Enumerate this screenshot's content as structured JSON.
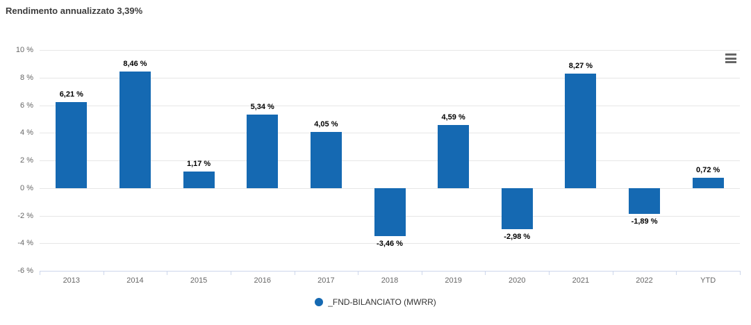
{
  "header": {
    "title": "Rendimento annualizzato 3,39%"
  },
  "chart_data": {
    "type": "bar",
    "title": "Rendimento annualizzato 3,39%",
    "categories": [
      "2013",
      "2014",
      "2015",
      "2016",
      "2017",
      "2018",
      "2019",
      "2020",
      "2021",
      "2022",
      "YTD"
    ],
    "series": [
      {
        "name": "_FND-BILANCIATO (MWRR)",
        "values": [
          6.21,
          8.46,
          1.17,
          5.34,
          4.05,
          -3.46,
          4.59,
          -2.98,
          8.27,
          -1.89,
          0.72
        ],
        "labels": [
          "6,21 %",
          "8,46 %",
          "1,17 %",
          "5,34 %",
          "4,05 %",
          "-3,46 %",
          "4,59 %",
          "-2,98 %",
          "8,27 %",
          "-1,89 %",
          "0,72 %"
        ]
      }
    ],
    "y_ticks": [
      {
        "value": 10,
        "label": "10 %"
      },
      {
        "value": 8,
        "label": "8 %"
      },
      {
        "value": 6,
        "label": "6 %"
      },
      {
        "value": 4,
        "label": "4 %"
      },
      {
        "value": 2,
        "label": "2 %"
      },
      {
        "value": 0,
        "label": "0 %"
      },
      {
        "value": -2,
        "label": "-2 %"
      },
      {
        "value": -4,
        "label": "-4 %"
      },
      {
        "value": -6,
        "label": "-6 %"
      }
    ],
    "ylim": [
      -6,
      10
    ],
    "xlabel": "",
    "ylabel": "",
    "grid": true,
    "legend_position": "bottom-center",
    "colors": {
      "bar": "#1569b2",
      "grid_line": "#e6e6e6",
      "axis_line": "#ccd6eb",
      "tick_text": "#666666",
      "data_label": "#000000",
      "title_text": "#3c3c3c",
      "legend_text": "#333333",
      "menu_icon": "#666666"
    }
  },
  "export_menu": {
    "icon": "hamburger-menu-icon"
  }
}
